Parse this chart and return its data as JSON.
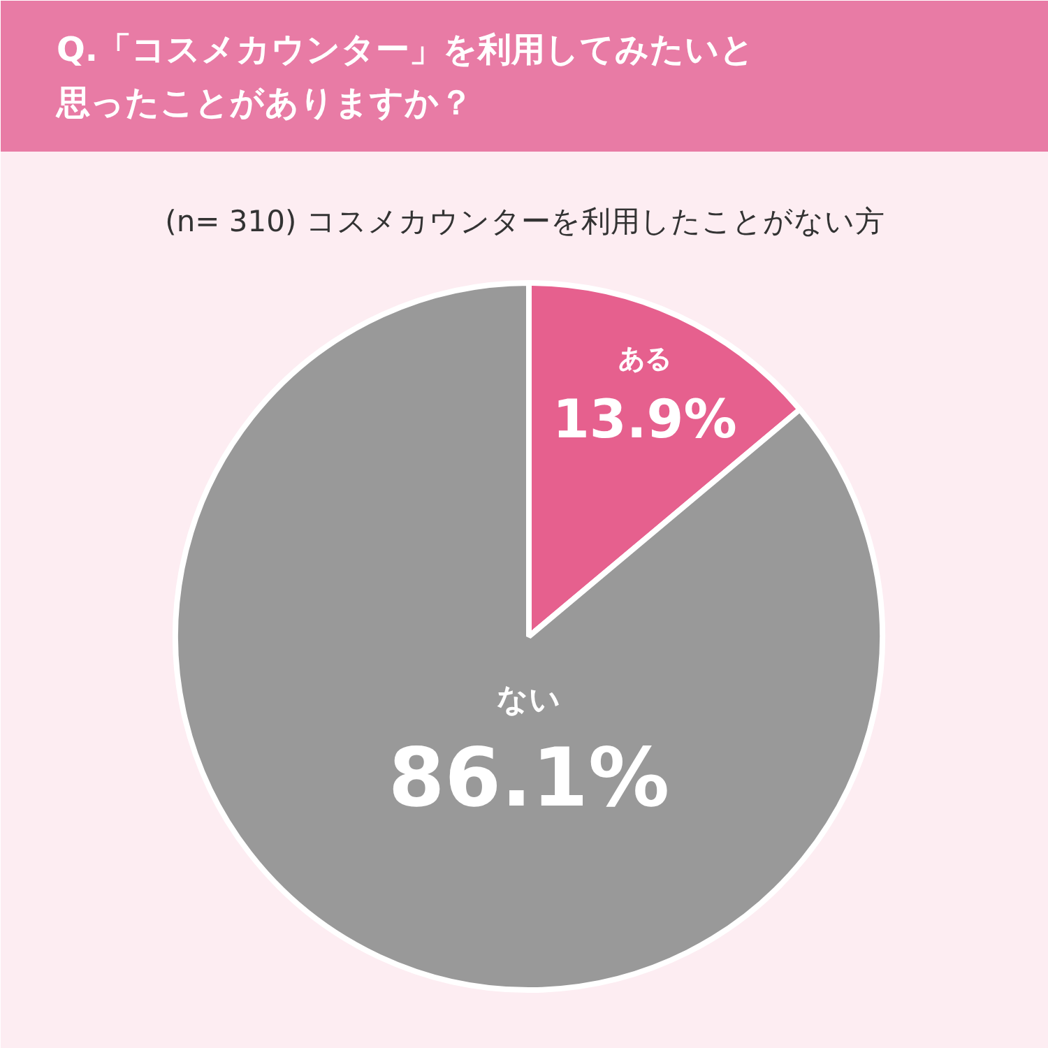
{
  "chart_data": {
    "type": "pie",
    "title": "Q.「コスメカウンター」を利用してみたいと思ったことがありますか？",
    "subtitle": "(n= 310) コスメカウンターを利用したことがない方",
    "categories": [
      "ある",
      "ない"
    ],
    "values": [
      13.9,
      86.1
    ],
    "colors": [
      "#e6608e",
      "#999999"
    ],
    "value_labels": [
      "13.9%",
      "86.1%"
    ]
  }
}
